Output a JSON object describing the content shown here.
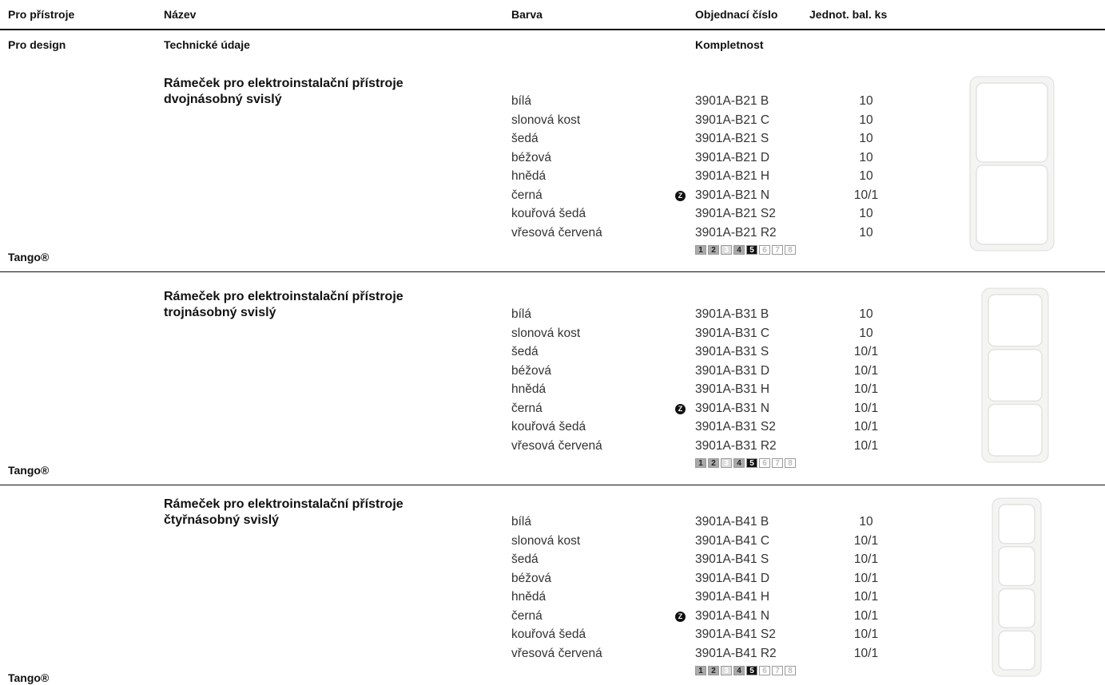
{
  "header": {
    "columns": [
      "Pro přístroje",
      "Název",
      "Barva",
      "Objednací číslo",
      "Jednot. bal. ks"
    ],
    "subcolumns": [
      "Pro design",
      "Technické údaje",
      "Kompletnost"
    ]
  },
  "sections": [
    {
      "title": "Rámeček pro elektroinstalační přístroje",
      "subtitle": "dvojnásobný svislý",
      "brand": "Tango®",
      "rows": [
        [
          "bílá",
          "3901A-B21 B",
          "10"
        ],
        [
          "slonová kost",
          "3901A-B21 C",
          "10"
        ],
        [
          "šedá",
          "3901A-B21 S",
          "10"
        ],
        [
          "béžová",
          "3901A-B21 D",
          "10"
        ],
        [
          "hnědá",
          "3901A-B21 H",
          "10"
        ],
        [
          "černá",
          "3901A-B21 N",
          "10/1"
        ],
        [
          "kouřová šedá",
          "3901A-B21 S2",
          "10"
        ],
        [
          "vřesová červená",
          "3901A-B21 R2",
          "10"
        ]
      ],
      "badge_row": 5,
      "badge": "Z",
      "completeness": {
        "labels": [
          "1",
          "2",
          "3",
          "4",
          "5",
          "6",
          "7",
          "8"
        ],
        "styles": [
          "grey",
          "grey",
          "light",
          "grey",
          "black",
          "white",
          "white",
          "white"
        ]
      }
    },
    {
      "title": "Rámeček pro elektroinstalační přístroje",
      "subtitle": "trojnásobný svislý",
      "brand": "Tango®",
      "rows": [
        [
          "bílá",
          "3901A-B31 B",
          "10"
        ],
        [
          "slonová kost",
          "3901A-B31 C",
          "10"
        ],
        [
          "šedá",
          "3901A-B31 S",
          "10/1"
        ],
        [
          "béžová",
          "3901A-B31 D",
          "10/1"
        ],
        [
          "hnědá",
          "3901A-B31 H",
          "10/1"
        ],
        [
          "černá",
          "3901A-B31 N",
          "10/1"
        ],
        [
          "kouřová šedá",
          "3901A-B31 S2",
          "10/1"
        ],
        [
          "vřesová červená",
          "3901A-B31 R2",
          "10/1"
        ]
      ],
      "badge_row": 5,
      "badge": "Z",
      "completeness": {
        "labels": [
          "1",
          "2",
          "3",
          "4",
          "5",
          "6",
          "7",
          "8"
        ],
        "styles": [
          "grey",
          "grey",
          "light",
          "grey",
          "black",
          "white",
          "white",
          "white"
        ]
      }
    },
    {
      "title": "Rámeček pro elektroinstalační přístroje",
      "subtitle": "čtyřnásobný svislý",
      "brand": "Tango®",
      "rows": [
        [
          "bílá",
          "3901A-B41 B",
          "10"
        ],
        [
          "slonová kost",
          "3901A-B41 C",
          "10/1"
        ],
        [
          "šedá",
          "3901A-B41 S",
          "10/1"
        ],
        [
          "béžová",
          "3901A-B41 D",
          "10/1"
        ],
        [
          "hnědá",
          "3901A-B41 H",
          "10/1"
        ],
        [
          "černá",
          "3901A-B41 N",
          "10/1"
        ],
        [
          "kouřová šedá",
          "3901A-B41 S2",
          "10/1"
        ],
        [
          "vřesová červená",
          "3901A-B41 R2",
          "10/1"
        ]
      ],
      "badge_row": 5,
      "badge": "Z",
      "completeness": {
        "labels": [
          "1",
          "2",
          "3",
          "4",
          "5",
          "6",
          "7",
          "8"
        ],
        "styles": [
          "grey",
          "grey",
          "light",
          "grey",
          "black",
          "white",
          "white",
          "white"
        ]
      }
    }
  ]
}
